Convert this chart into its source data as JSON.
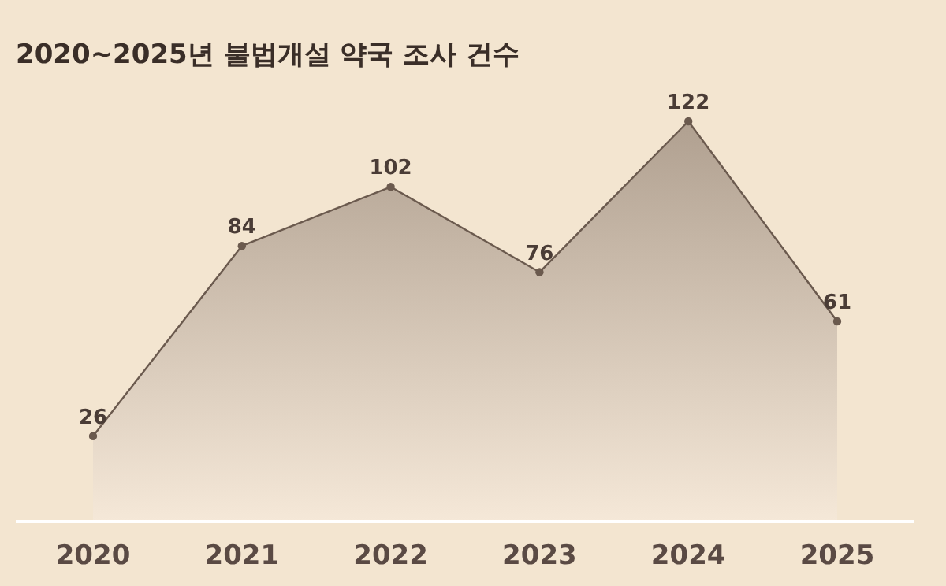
{
  "chart_data": {
    "type": "area",
    "title": "2020~2025년 불법개설 약국 조사 건수",
    "categories": [
      "2020",
      "2021",
      "2022",
      "2023",
      "2024",
      "2025"
    ],
    "series": [
      {
        "color": "#6b5a4e",
        "values": [
          26,
          84,
          102,
          76,
          122,
          61
        ]
      }
    ],
    "data_labels": true,
    "marker": "circle"
  }
}
